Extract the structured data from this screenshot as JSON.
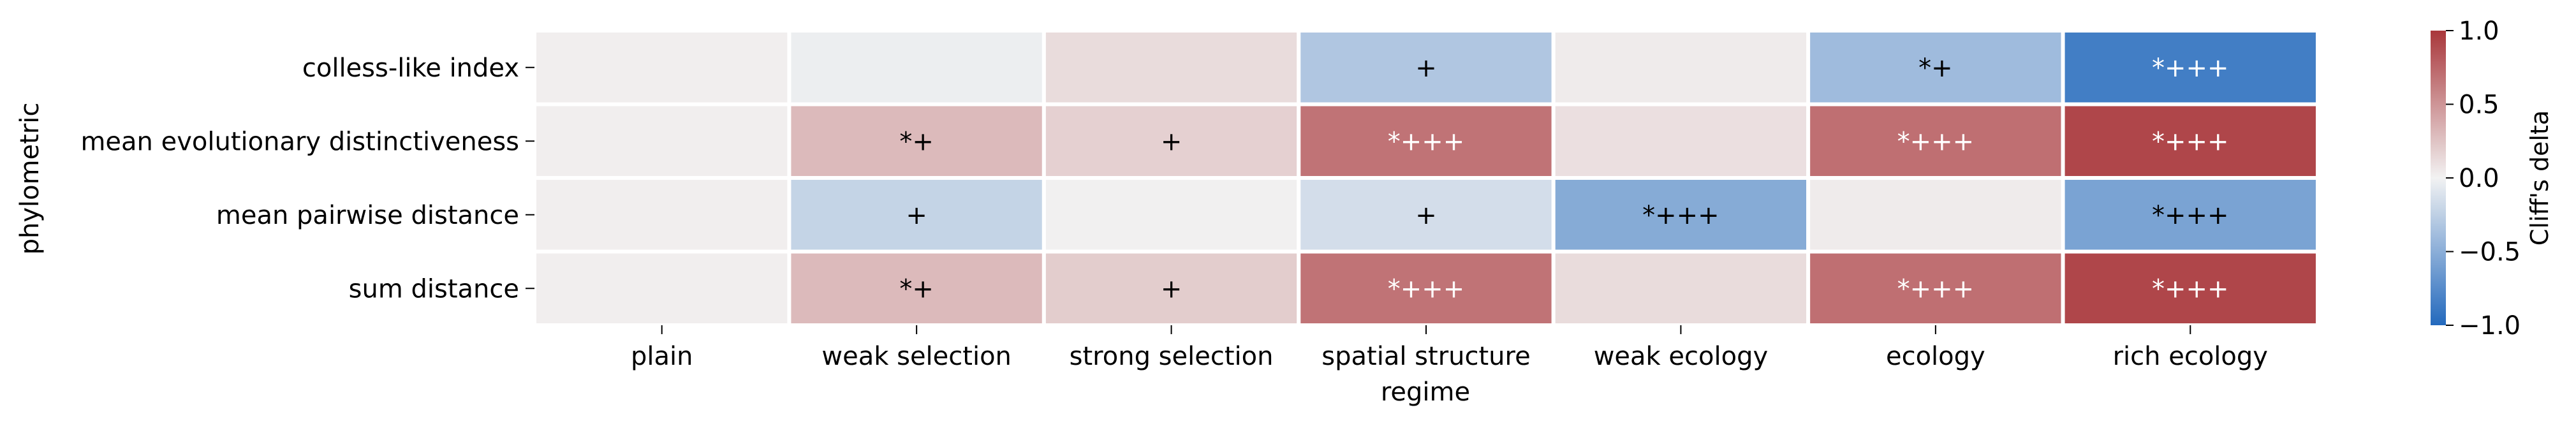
{
  "chart_data": {
    "type": "heatmap",
    "title": "",
    "xlabel": "regime",
    "ylabel": "phylometric",
    "x_categories": [
      "plain",
      "weak selection",
      "strong selection",
      "spatial structure",
      "weak ecology",
      "ecology",
      "rich ecology"
    ],
    "y_categories": [
      "colless-like index",
      "mean evolutionary distinctiveness",
      "mean pairwise distance",
      "sum distance"
    ],
    "values": [
      [
        0.02,
        -0.03,
        0.12,
        -0.32,
        0.04,
        -0.4,
        -0.85
      ],
      [
        0.02,
        0.3,
        0.18,
        0.68,
        0.1,
        0.7,
        0.92
      ],
      [
        0.02,
        -0.22,
        0.01,
        -0.15,
        -0.52,
        0.04,
        -0.58
      ],
      [
        0.02,
        0.3,
        0.2,
        0.68,
        0.12,
        0.7,
        0.92
      ]
    ],
    "annotations": [
      [
        "",
        "",
        "",
        "+",
        "",
        "*+",
        "*+++"
      ],
      [
        "",
        "*+",
        "+",
        "*+++",
        "",
        "*+++",
        "*+++"
      ],
      [
        "",
        "+",
        "",
        "+",
        "*+++",
        "",
        "*+++"
      ],
      [
        "",
        "*+",
        "+",
        "*+++",
        "",
        "*+++",
        "*+++"
      ]
    ],
    "colorbar": {
      "label": "Cliff's delta",
      "range": [
        -1.0,
        1.0
      ],
      "ticks": [
        -1.0,
        -0.5,
        0.0,
        0.5,
        1.0
      ],
      "tick_labels": [
        "−1.0",
        "−0.5",
        "0.0",
        "0.5",
        "1.0"
      ],
      "colormap": "vlag",
      "color_low": "#2369bd",
      "color_mid": "#f2f2f2",
      "color_high": "#a9373b"
    },
    "grid": false
  }
}
